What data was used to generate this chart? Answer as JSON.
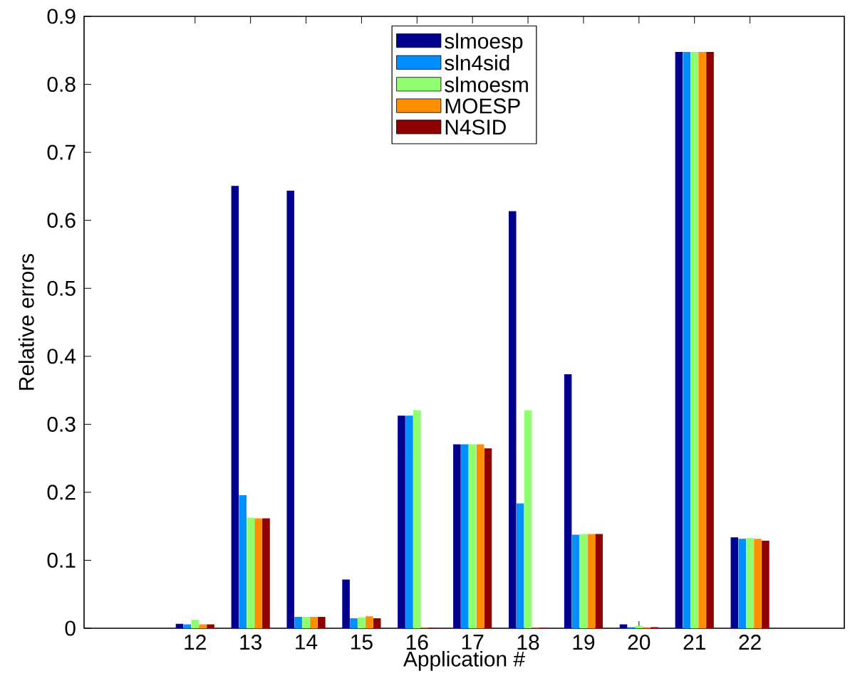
{
  "chart_data": {
    "type": "bar",
    "xlabel": "Application #",
    "ylabel": "Relative errors",
    "x": [
      12,
      13,
      14,
      15,
      16,
      17,
      18,
      19,
      20,
      21,
      22
    ],
    "xlim": [
      10,
      23.7
    ],
    "xticks": [
      12,
      13,
      14,
      15,
      16,
      17,
      18,
      19,
      20,
      21,
      22
    ],
    "ylim": [
      0,
      0.9
    ],
    "yticks": [
      0,
      0.1,
      0.2,
      0.3,
      0.4,
      0.5,
      0.6,
      0.7,
      0.8,
      0.9
    ],
    "legend": "top",
    "series": [
      {
        "name": "slmoesp",
        "color": "#00008f",
        "values": [
          0.006,
          0.65,
          0.643,
          0.071,
          0.312,
          0.27,
          0.613,
          0.373,
          0.005,
          0.847,
          0.133
        ]
      },
      {
        "name": "sln4sid",
        "color": "#008fff",
        "values": [
          0.005,
          0.195,
          0.016,
          0.014,
          0.312,
          0.27,
          0.183,
          0.137,
          0.001,
          0.847,
          0.131
        ]
      },
      {
        "name": "slmoesm",
        "color": "#8fff70",
        "values": [
          0.012,
          0.162,
          0.016,
          0.015,
          0.32,
          0.27,
          0.32,
          0.138,
          0.003,
          0.847,
          0.132
        ]
      },
      {
        "name": "MOESP",
        "color": "#ff8f00",
        "values": [
          0.005,
          0.161,
          0.016,
          0.017,
          0,
          0.27,
          0,
          0.138,
          0.001,
          0.847,
          0.131
        ]
      },
      {
        "name": "N4SID",
        "color": "#8f0000",
        "values": [
          0.005,
          0.161,
          0.016,
          0.014,
          0,
          0.264,
          0,
          0.138,
          0.001,
          0.847,
          0.128
        ]
      }
    ]
  }
}
